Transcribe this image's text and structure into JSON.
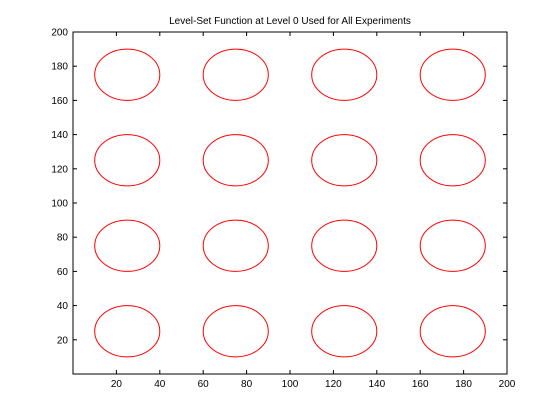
{
  "chart_data": {
    "type": "scatter",
    "title": "Level-Set Function at Level 0 Used for All Experiments",
    "xlabel": "",
    "ylabel": "",
    "xlim": [
      0,
      200
    ],
    "ylim": [
      0,
      200
    ],
    "xticks": [
      20,
      40,
      60,
      80,
      100,
      120,
      140,
      160,
      180,
      200
    ],
    "yticks": [
      20,
      40,
      60,
      80,
      100,
      120,
      140,
      160,
      180,
      200
    ],
    "grid": false,
    "line_color": "#ff0000",
    "contour": {
      "level": 0,
      "shape": "circle",
      "radius": 15,
      "centers_x": [
        25,
        75,
        125,
        175
      ],
      "centers_y": [
        25,
        75,
        125,
        175
      ]
    }
  }
}
